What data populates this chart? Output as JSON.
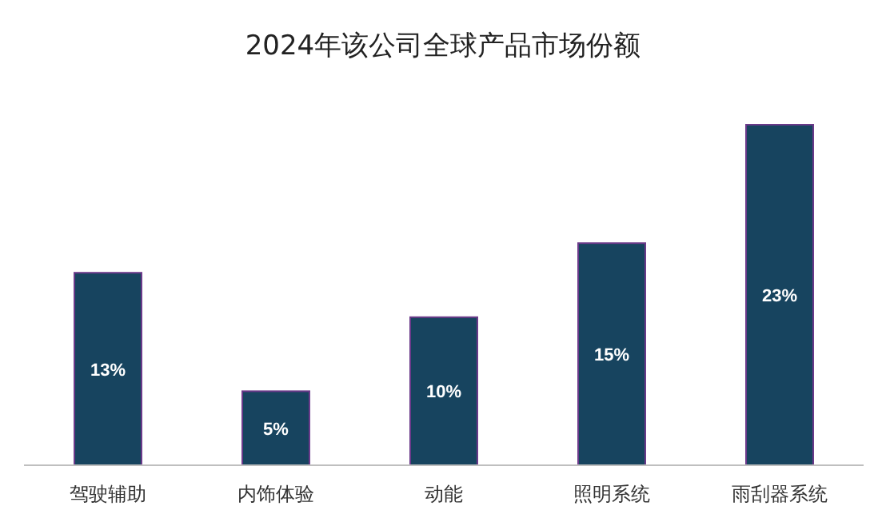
{
  "chart_data": {
    "type": "bar",
    "title": "2024年该公司全球产品市场份额",
    "categories": [
      "驾驶辅助",
      "内饰体验",
      "动能",
      "照明系统",
      "雨刮器系统"
    ],
    "values": [
      13,
      5,
      10,
      15,
      23
    ],
    "color": "#17445f",
    "value_labels": [
      "13%",
      "5%",
      "10%",
      "15%",
      "23%"
    ]
  }
}
